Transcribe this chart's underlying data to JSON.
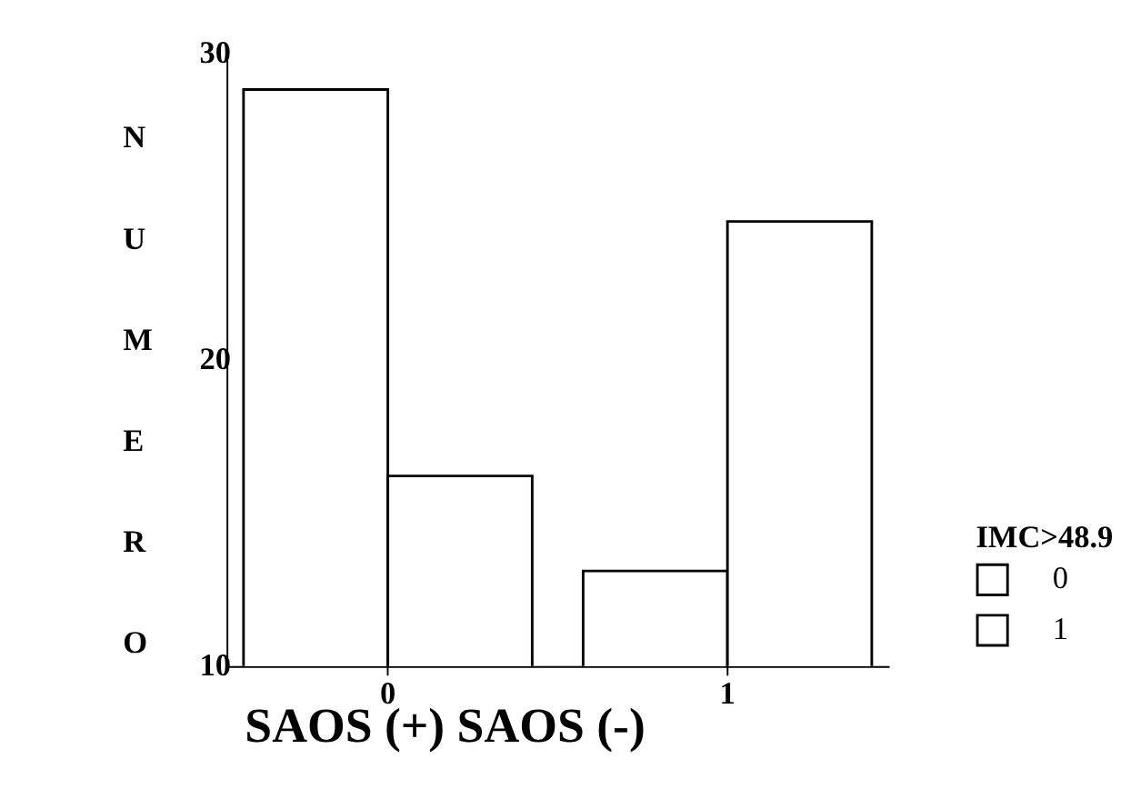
{
  "chart_data": {
    "type": "bar",
    "categories": [
      "0",
      "1"
    ],
    "series": [
      {
        "name": "0",
        "color": "#ffffff",
        "values": [
          28.8,
          13.1
        ]
      },
      {
        "name": "1",
        "color": "#ffffff",
        "values": [
          16.2,
          24.5
        ]
      }
    ],
    "xlabel": "SAOS (+)  SAOS (-)",
    "ylabel": "NUMERO",
    "legend_title": "IMC>48.9",
    "ylim": [
      10,
      30
    ],
    "yticks": [
      10,
      20,
      30
    ],
    "grid": false,
    "legend": "bottom right"
  }
}
